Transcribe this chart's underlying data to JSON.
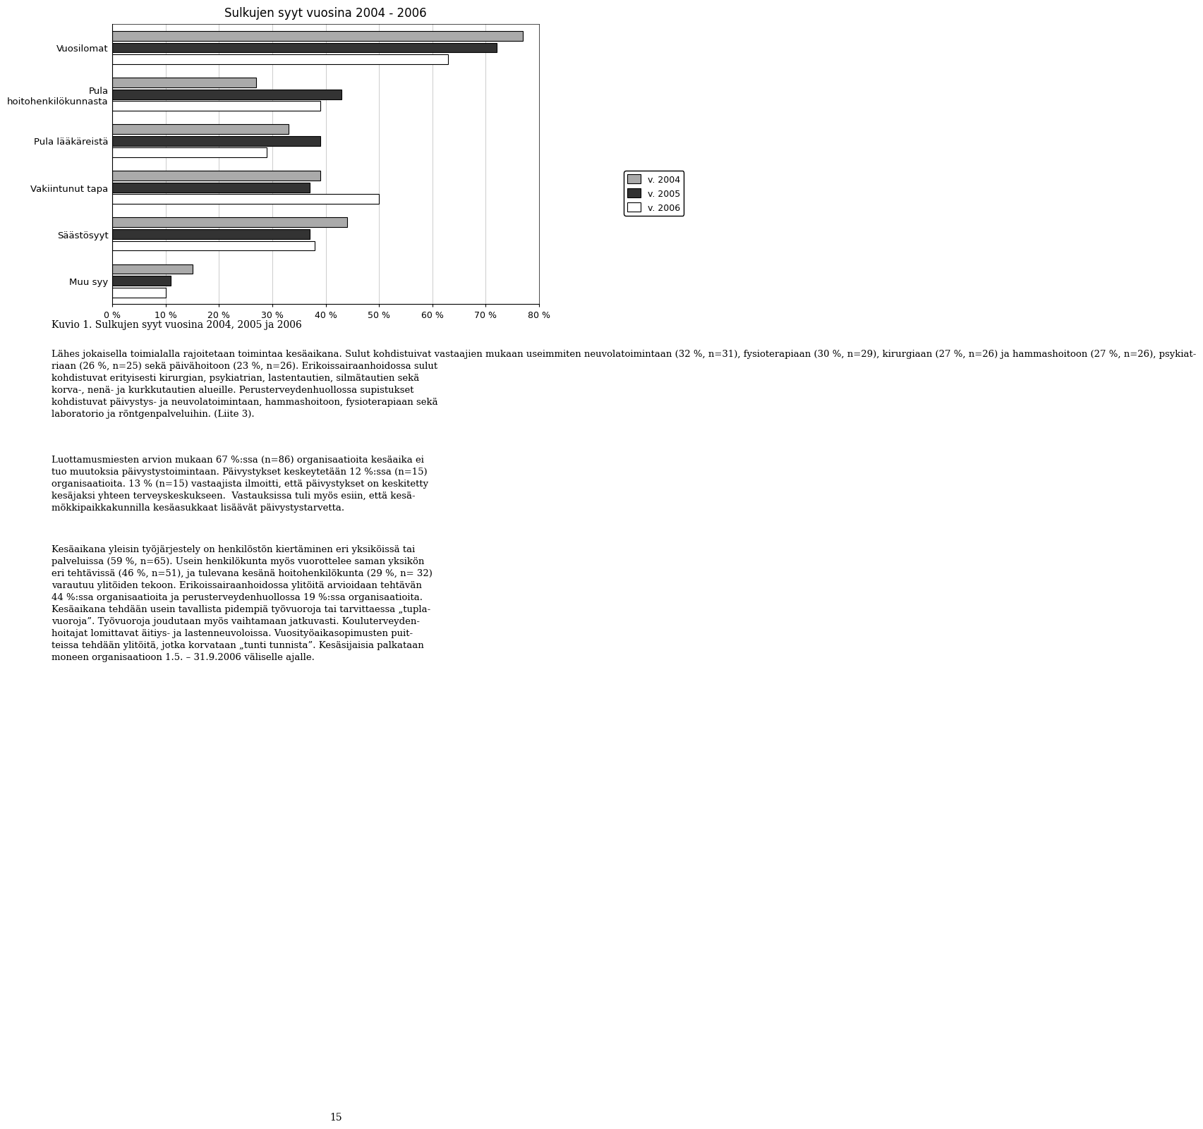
{
  "title": "Sulkujen syyt vuosina 2004 - 2006",
  "categories": [
    "Vuosilomat",
    "Pula\nhoitohenkilökunnasta",
    "Pula lääkäreistä",
    "Vakiintunut tapa",
    "Säästösyyt",
    "Muu syy"
  ],
  "years": [
    "v. 2004",
    "v. 2005",
    "v. 2006"
  ],
  "values_2004": [
    77,
    27,
    33,
    39,
    44,
    15
  ],
  "values_2005": [
    72,
    43,
    39,
    37,
    37,
    11
  ],
  "values_2006": [
    63,
    39,
    29,
    50,
    38,
    10
  ],
  "colors": [
    "#aaaaaa",
    "#333333",
    "#ffffff"
  ],
  "bar_edgecolor": "#000000",
  "xlim": [
    0,
    80
  ],
  "xticks": [
    0,
    10,
    20,
    30,
    40,
    50,
    60,
    70,
    80
  ],
  "xtick_labels": [
    "0 %",
    "10 %",
    "20 %",
    "30 %",
    "40 %",
    "50 %",
    "60 %",
    "70 %",
    "80 %"
  ],
  "background_color": "#ffffff",
  "title_fontsize": 12,
  "tick_fontsize": 9,
  "label_fontsize": 9.5,
  "legend_fontsize": 9,
  "kuvio_label": "Kuvio 1. Sulkujen syyt vuosina 2004, 2005 ja 2006",
  "para1": "Lähes jokaisella toimialalla rajoitetaan toimintaa kesäaikana.",
  "para2": "Sulut kohdistuivat vastaajien mukaan useimmiten neuvolatoimintaan (32 %, n=31), fysioterapiaan (30 %, n=29), kirurgiaan (27 %, n=26) ja hammashoitoon (27 %, n=26), psykiat-\nriaan (26 %, n=25) sekä päivähoitoon (23 %, n=26). Erikoissairaanhoidossa sulut\nkohdistuvat erityisesti kirurgian, psykiatrian, lastentautien, silmätautien sekä\nkorva-, nenä- ja kurkkutautien alueille. Perusterveydenhuollossa supistukset\nkohdistuvat päivystys- ja neuvolatoimintaan, hammashoitoon, fysioterapiaan sekä\nlaboratorio ja röntgenpalveluihin. (Liite 3).",
  "para3": "Luottamusmiesten arvion mukaan 67 %:ssa (n=86) organisaatioita kesäaika ei\ntuo muutoksia päivystystoimintaan. Päivystykset keskeytetään 12 %:ssa (n=15)\norganisaatioita. 13 % (n=15) vastaajista ilmoitti, että päivystykset on keskitetty\nkesäjaksi yhteen terveyskeskukseen.  Vastauksissa tuli myös esiin, että kesä-\nmökkipaikkakunnilla kesäasukkaat lisäävät päivystystarvetta.",
  "para4": "Kesäaikana yleisin työjärjestely on henkilöstön kiertäminen eri yksiköissä tai\npalveluissa (59 %, n=65). Usein henkilökunta myös vuorottelee saman yksikön\neri tehtävissä (46 %, n=51), ja tulevana kesänä hoitohenkilökunta (29 %, n= 32)\nvarautuu ylitöiden tekoon. Erikoissairaanhoidossa ylitöitä arvioidaan tehtävän\n44 %:ssa organisaatioita ja perusterveydenhuollossa 19 %:ssa organisaatioita.\nKesäaikana tehdään usein tavallista pidempiä työvuoroja tai tarvittaessa „tupla-\nvuoroja”. Työvuoroja joudutaan myös vaihtamaan jatkuvasti. Kouluterveyden-\nhoitajat lomittavat äitiys- ja lastenneuvoloissa. Vuosityöaikasopimusten puit-\nteissa tehdään ylitöitä, jotka korvataan „tunti tunnista”. Kesäsijaisia palkataan\nmoneen organisaatioon 1.5. – 31.9.2006 väliselle ajalle.",
  "page_number": "15"
}
